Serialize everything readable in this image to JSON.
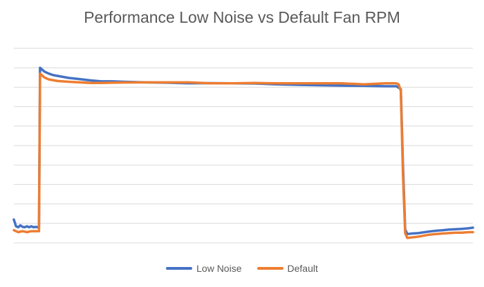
{
  "chart_data": {
    "type": "line",
    "title": "Performance Low Noise vs Default Fan RPM",
    "xlabel": "",
    "ylabel": "",
    "grid": true,
    "gridlines": 10,
    "legend_position": "bottom",
    "ylim": [
      0,
      10
    ],
    "series": [
      {
        "name": "Low Noise",
        "color": "#4472C4",
        "points": [
          [
            0,
            1.2
          ],
          [
            1,
            0.85
          ],
          [
            2,
            0.8
          ],
          [
            3,
            0.9
          ],
          [
            4,
            0.82
          ],
          [
            5,
            0.8
          ],
          [
            6,
            0.85
          ],
          [
            7,
            0.8
          ],
          [
            8,
            0.85
          ],
          [
            9,
            0.8
          ],
          [
            10,
            0.82
          ],
          [
            11,
            0.8
          ],
          [
            11.5,
            0.78
          ],
          [
            12,
            9.0
          ],
          [
            13,
            8.9
          ],
          [
            14,
            8.8
          ],
          [
            16,
            8.7
          ],
          [
            18,
            8.62
          ],
          [
            20,
            8.58
          ],
          [
            25,
            8.48
          ],
          [
            30,
            8.42
          ],
          [
            35,
            8.35
          ],
          [
            40,
            8.3
          ],
          [
            45,
            8.3
          ],
          [
            50,
            8.28
          ],
          [
            60,
            8.25
          ],
          [
            70,
            8.23
          ],
          [
            80,
            8.2
          ],
          [
            90,
            8.21
          ],
          [
            100,
            8.2
          ],
          [
            110,
            8.19
          ],
          [
            120,
            8.15
          ],
          [
            130,
            8.12
          ],
          [
            140,
            8.1
          ],
          [
            150,
            8.08
          ],
          [
            160,
            8.07
          ],
          [
            170,
            8.05
          ],
          [
            175,
            8.05
          ],
          [
            177,
            7.9
          ],
          [
            178,
            4.0
          ],
          [
            179,
            0.7
          ],
          [
            180,
            0.45
          ],
          [
            182,
            0.48
          ],
          [
            185,
            0.5
          ],
          [
            188,
            0.55
          ],
          [
            190,
            0.58
          ],
          [
            193,
            0.62
          ],
          [
            196,
            0.65
          ],
          [
            199,
            0.68
          ],
          [
            202,
            0.7
          ],
          [
            205,
            0.72
          ],
          [
            208,
            0.75
          ],
          [
            210,
            0.78
          ]
        ]
      },
      {
        "name": "Default",
        "color": "#ED7D31",
        "points": [
          [
            0,
            0.65
          ],
          [
            2,
            0.55
          ],
          [
            4,
            0.6
          ],
          [
            6,
            0.55
          ],
          [
            8,
            0.6
          ],
          [
            10,
            0.6
          ],
          [
            11.5,
            0.6
          ],
          [
            12,
            8.7
          ],
          [
            13,
            8.6
          ],
          [
            14,
            8.5
          ],
          [
            16,
            8.4
          ],
          [
            20,
            8.32
          ],
          [
            25,
            8.28
          ],
          [
            30,
            8.25
          ],
          [
            35,
            8.22
          ],
          [
            40,
            8.22
          ],
          [
            45,
            8.23
          ],
          [
            50,
            8.24
          ],
          [
            60,
            8.25
          ],
          [
            70,
            8.25
          ],
          [
            80,
            8.25
          ],
          [
            90,
            8.2
          ],
          [
            100,
            8.2
          ],
          [
            110,
            8.22
          ],
          [
            120,
            8.2
          ],
          [
            130,
            8.2
          ],
          [
            140,
            8.2
          ],
          [
            150,
            8.2
          ],
          [
            160,
            8.15
          ],
          [
            170,
            8.2
          ],
          [
            175,
            8.2
          ],
          [
            176,
            8.15
          ],
          [
            177,
            7.8
          ],
          [
            178,
            3.5
          ],
          [
            179,
            0.5
          ],
          [
            180,
            0.25
          ],
          [
            182,
            0.28
          ],
          [
            185,
            0.32
          ],
          [
            188,
            0.38
          ],
          [
            190,
            0.42
          ],
          [
            193,
            0.45
          ],
          [
            196,
            0.48
          ],
          [
            199,
            0.5
          ],
          [
            202,
            0.52
          ],
          [
            205,
            0.52
          ],
          [
            208,
            0.55
          ],
          [
            210,
            0.55
          ]
        ]
      }
    ]
  }
}
